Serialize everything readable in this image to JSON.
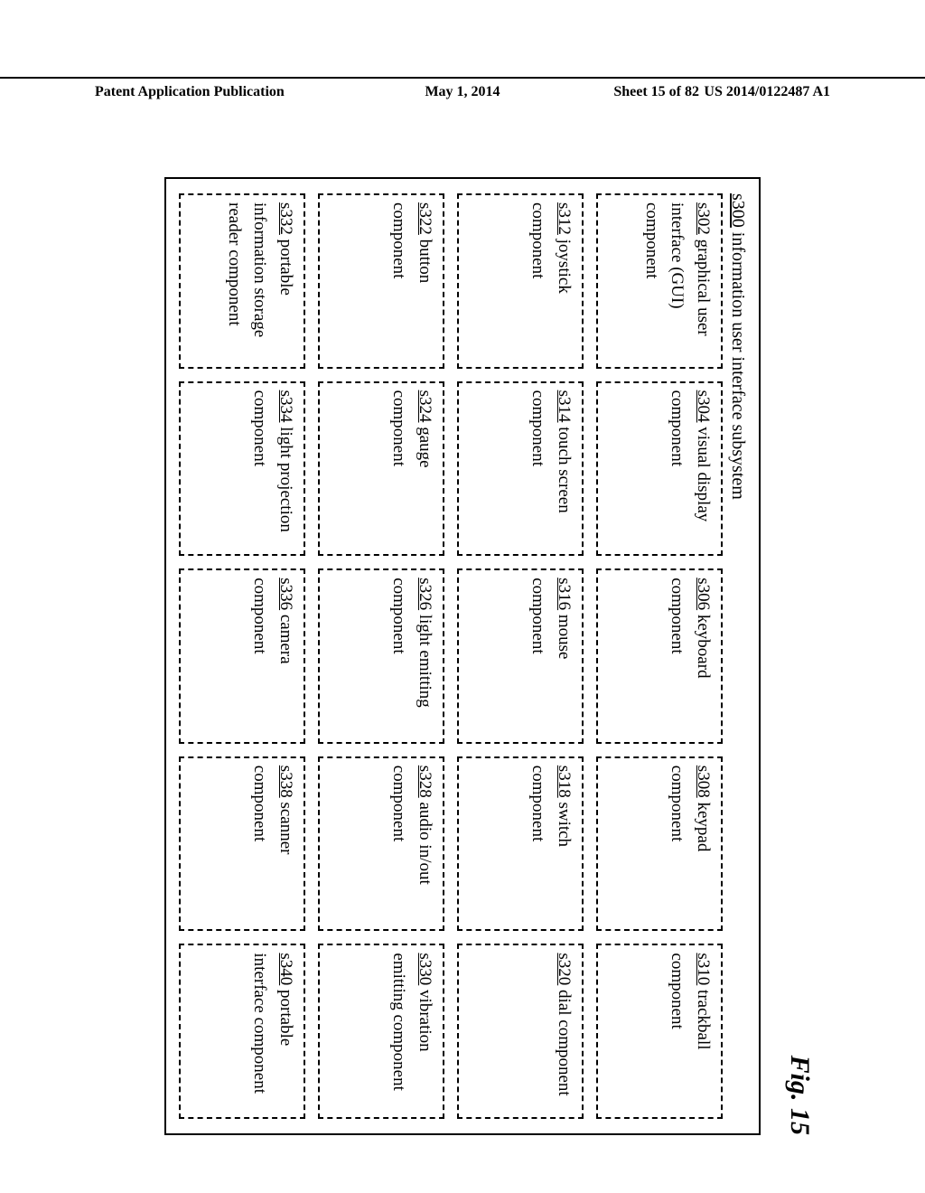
{
  "header": {
    "left": "Patent Application Publication",
    "center": "May 1, 2014",
    "sheet": "Sheet 15 of 82",
    "right": "US 2014/0122487 A1"
  },
  "figure_label": "Fig. 15",
  "outer": {
    "ref": "s300",
    "label": " information user interface subsystem"
  },
  "layout": {
    "cols": 5,
    "rows": 4,
    "font_size_pt": 19,
    "border_style": "dashed"
  },
  "cells": [
    {
      "ref": "s302",
      "text": " graphical user interface (GUI) component"
    },
    {
      "ref": "s304",
      "text": " visual display component"
    },
    {
      "ref": "s306",
      "text": " keyboard component"
    },
    {
      "ref": "s308",
      "text": " keypad component"
    },
    {
      "ref": "s310",
      "text": " trackball component"
    },
    {
      "ref": "s312",
      "text": " joystick component"
    },
    {
      "ref": "s314",
      "text": " touch screen component"
    },
    {
      "ref": "s316",
      "text": " mouse component"
    },
    {
      "ref": "s318",
      "text": " switch component"
    },
    {
      "ref": "s320",
      "text": " dial component"
    },
    {
      "ref": "s322",
      "text": " button component"
    },
    {
      "ref": "s324",
      "text": " gauge component"
    },
    {
      "ref": "s326",
      "text": " light emitting component"
    },
    {
      "ref": "s328",
      "text": " audio in/out component"
    },
    {
      "ref": "s330",
      "text": " vibration emitting component"
    },
    {
      "ref": "s332",
      "text": " portable information storage reader component"
    },
    {
      "ref": "s334",
      "text": " light projection component"
    },
    {
      "ref": "s336",
      "text": " camera component"
    },
    {
      "ref": "s338",
      "text": " scanner component"
    },
    {
      "ref": "s340",
      "text": " portable interface component"
    }
  ]
}
